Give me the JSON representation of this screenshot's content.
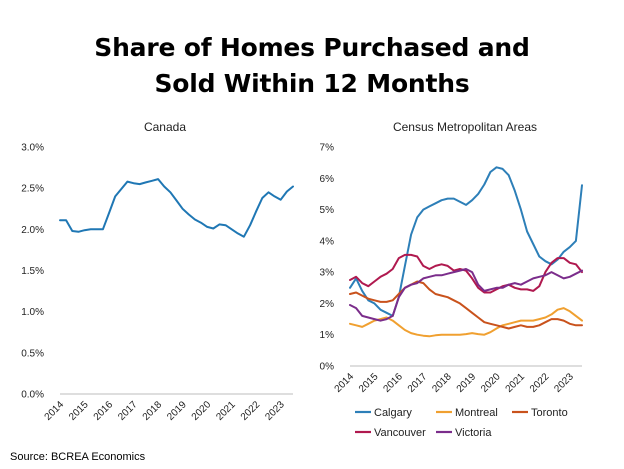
{
  "title": {
    "line1": "Share of Homes Purchased and",
    "line2": "Sold Within 12 Months"
  },
  "source": "Source: BCREA Economics",
  "chart_data": [
    {
      "type": "line",
      "title": "Canada",
      "xlabel": "",
      "ylabel": "",
      "xlim": [
        2014,
        2023.5
      ],
      "ylim": [
        0,
        3.0
      ],
      "yticks": [
        "0.0%",
        "0.5%",
        "1.0%",
        "1.5%",
        "2.0%",
        "2.5%",
        "3.0%"
      ],
      "xticks": [
        "2014",
        "2015",
        "2016",
        "2017",
        "2018",
        "2019",
        "2020",
        "2021",
        "2022",
        "2023"
      ],
      "grid": false,
      "series": [
        {
          "color": "#1f77b4",
          "x": [
            2014,
            2014.25,
            2014.5,
            2014.75,
            2015,
            2015.25,
            2015.5,
            2015.75,
            2016,
            2016.25,
            2016.5,
            2016.75,
            2017,
            2017.25,
            2017.5,
            2017.75,
            2018,
            2018.25,
            2018.5,
            2018.75,
            2019,
            2019.25,
            2019.5,
            2019.75,
            2020,
            2020.25,
            2020.5,
            2020.75,
            2021,
            2021.25,
            2021.5,
            2021.75,
            2022,
            2022.25,
            2022.5,
            2022.75,
            2023,
            2023.25,
            2023.5
          ],
          "values": [
            2.11,
            2.11,
            1.98,
            1.97,
            1.99,
            2.0,
            2.0,
            2.0,
            2.2,
            2.4,
            2.49,
            2.58,
            2.56,
            2.55,
            2.57,
            2.59,
            2.61,
            2.52,
            2.45,
            2.35,
            2.25,
            2.18,
            2.12,
            2.08,
            2.03,
            2.01,
            2.06,
            2.05,
            2.0,
            1.95,
            1.91,
            2.05,
            2.22,
            2.38,
            2.45,
            2.4,
            2.36,
            2.46,
            2.52
          ]
        }
      ]
    },
    {
      "type": "line",
      "title": "Census Metropolitan Areas",
      "xlabel": "",
      "ylabel": "",
      "xlim": [
        2014,
        2023.5
      ],
      "ylim": [
        0,
        7
      ],
      "yticks": [
        "0%",
        "1%",
        "2%",
        "3%",
        "4%",
        "5%",
        "6%",
        "7%"
      ],
      "xticks": [
        "2014",
        "2015",
        "2016",
        "2017",
        "2018",
        "2019",
        "2020",
        "2021",
        "2022",
        "2023"
      ],
      "grid": false,
      "legend_position": "bottom",
      "series": [
        {
          "name": "Calgary",
          "color": "#2d7fb8",
          "x": [
            2014,
            2014.25,
            2014.5,
            2014.75,
            2015,
            2015.25,
            2015.5,
            2015.75,
            2016,
            2016.25,
            2016.5,
            2016.75,
            2017,
            2017.25,
            2017.5,
            2017.75,
            2018,
            2018.25,
            2018.5,
            2018.75,
            2019,
            2019.25,
            2019.5,
            2019.75,
            2020,
            2020.25,
            2020.5,
            2020.75,
            2021,
            2021.25,
            2021.5,
            2021.75,
            2022,
            2022.25,
            2022.5,
            2022.75,
            2023,
            2023.25,
            2023.5
          ],
          "values": [
            2.5,
            2.8,
            2.4,
            2.1,
            2.0,
            1.8,
            1.7,
            1.6,
            2.2,
            3.2,
            4.2,
            4.75,
            5.0,
            5.1,
            5.2,
            5.3,
            5.35,
            5.35,
            5.25,
            5.15,
            5.3,
            5.5,
            5.8,
            6.2,
            6.35,
            6.3,
            6.1,
            5.6,
            5.0,
            4.3,
            3.9,
            3.5,
            3.35,
            3.25,
            3.4,
            3.65,
            3.8,
            4.0,
            5.78
          ]
        },
        {
          "name": "Montreal",
          "color": "#f0a030",
          "x": [
            2014,
            2014.25,
            2014.5,
            2014.75,
            2015,
            2015.25,
            2015.5,
            2015.75,
            2016,
            2016.25,
            2016.5,
            2016.75,
            2017,
            2017.25,
            2017.5,
            2017.75,
            2018,
            2018.25,
            2018.5,
            2018.75,
            2019,
            2019.25,
            2019.5,
            2019.75,
            2020,
            2020.25,
            2020.5,
            2020.75,
            2021,
            2021.25,
            2021.5,
            2021.75,
            2022,
            2022.25,
            2022.5,
            2022.75,
            2023,
            2023.25,
            2023.5
          ],
          "values": [
            1.35,
            1.3,
            1.25,
            1.35,
            1.45,
            1.5,
            1.55,
            1.45,
            1.3,
            1.15,
            1.05,
            1.0,
            0.97,
            0.95,
            0.98,
            1.0,
            1.0,
            1.0,
            1.0,
            1.02,
            1.05,
            1.02,
            1.0,
            1.08,
            1.2,
            1.3,
            1.35,
            1.4,
            1.45,
            1.45,
            1.45,
            1.5,
            1.55,
            1.65,
            1.8,
            1.85,
            1.75,
            1.6,
            1.45
          ]
        },
        {
          "name": "Toronto",
          "color": "#c9521c",
          "x": [
            2014,
            2014.25,
            2014.5,
            2014.75,
            2015,
            2015.25,
            2015.5,
            2015.75,
            2016,
            2016.25,
            2016.5,
            2016.75,
            2017,
            2017.25,
            2017.5,
            2017.75,
            2018,
            2018.25,
            2018.5,
            2018.75,
            2019,
            2019.25,
            2019.5,
            2019.75,
            2020,
            2020.25,
            2020.5,
            2020.75,
            2021,
            2021.25,
            2021.5,
            2021.75,
            2022,
            2022.25,
            2022.5,
            2022.75,
            2023,
            2023.25,
            2023.5
          ],
          "values": [
            2.3,
            2.35,
            2.25,
            2.15,
            2.1,
            2.05,
            2.05,
            2.1,
            2.3,
            2.5,
            2.6,
            2.7,
            2.65,
            2.45,
            2.3,
            2.25,
            2.2,
            2.1,
            2.0,
            1.85,
            1.7,
            1.55,
            1.4,
            1.35,
            1.3,
            1.25,
            1.2,
            1.25,
            1.3,
            1.25,
            1.25,
            1.3,
            1.4,
            1.5,
            1.5,
            1.45,
            1.35,
            1.3,
            1.3
          ]
        },
        {
          "name": "Vancouver",
          "color": "#b0194f",
          "x": [
            2014,
            2014.25,
            2014.5,
            2014.75,
            2015,
            2015.25,
            2015.5,
            2015.75,
            2016,
            2016.25,
            2016.5,
            2016.75,
            2017,
            2017.25,
            2017.5,
            2017.75,
            2018,
            2018.25,
            2018.5,
            2018.75,
            2019,
            2019.25,
            2019.5,
            2019.75,
            2020,
            2020.25,
            2020.5,
            2020.75,
            2021,
            2021.25,
            2021.5,
            2021.75,
            2022,
            2022.25,
            2022.5,
            2022.75,
            2023,
            2023.25,
            2023.5
          ],
          "values": [
            2.75,
            2.85,
            2.65,
            2.55,
            2.7,
            2.85,
            2.95,
            3.1,
            3.45,
            3.55,
            3.55,
            3.5,
            3.2,
            3.1,
            3.2,
            3.25,
            3.2,
            3.05,
            3.1,
            3.05,
            2.8,
            2.5,
            2.35,
            2.35,
            2.45,
            2.55,
            2.6,
            2.5,
            2.45,
            2.45,
            2.4,
            2.55,
            3.0,
            3.3,
            3.45,
            3.45,
            3.3,
            3.25,
            3.0
          ]
        },
        {
          "name": "Victoria",
          "color": "#7b2d8b",
          "x": [
            2014,
            2014.25,
            2014.5,
            2014.75,
            2015,
            2015.25,
            2015.5,
            2015.75,
            2016,
            2016.25,
            2016.5,
            2016.75,
            2017,
            2017.25,
            2017.5,
            2017.75,
            2018,
            2018.25,
            2018.5,
            2018.75,
            2019,
            2019.25,
            2019.5,
            2019.75,
            2020,
            2020.25,
            2020.5,
            2020.75,
            2021,
            2021.25,
            2021.5,
            2021.75,
            2022,
            2022.25,
            2022.5,
            2022.75,
            2023,
            2023.25,
            2023.5
          ],
          "values": [
            1.95,
            1.85,
            1.6,
            1.55,
            1.5,
            1.45,
            1.5,
            1.6,
            2.2,
            2.5,
            2.6,
            2.65,
            2.8,
            2.85,
            2.9,
            2.9,
            2.95,
            3.0,
            3.05,
            3.1,
            3.0,
            2.6,
            2.4,
            2.45,
            2.5,
            2.5,
            2.6,
            2.65,
            2.6,
            2.7,
            2.8,
            2.85,
            2.9,
            3.0,
            2.9,
            2.8,
            2.85,
            2.95,
            3.05
          ]
        }
      ]
    }
  ]
}
